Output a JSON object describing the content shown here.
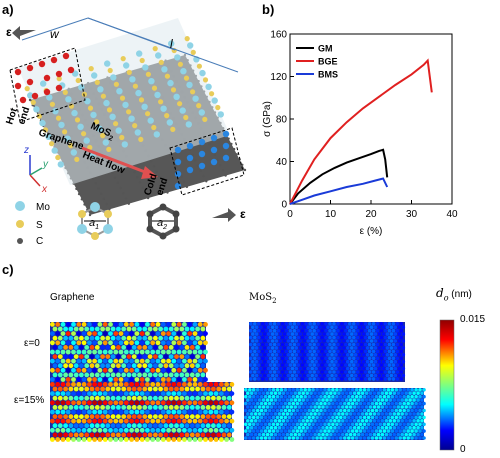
{
  "panel_a": {
    "label": "a)",
    "w_label": "w",
    "l_label": "l",
    "eps_left": "ε",
    "eps_right": "ε",
    "hot_end": [
      "Hot",
      "end"
    ],
    "cold_end": [
      "Cold",
      "end"
    ],
    "mos2_label": "MoS",
    "mos2_sub": "2",
    "graphene_label": "Graphene",
    "heat_flow": "Heat flow",
    "axes": {
      "z": "z",
      "y": "y",
      "x": "x"
    },
    "legend": [
      {
        "label": "Mo",
        "color": "#8fd3e6"
      },
      {
        "label": "S",
        "color": "#e8cc5a"
      },
      {
        "label": "C",
        "color": "#555555"
      }
    ],
    "a1_label": "a",
    "a1_sub": "1",
    "a2_label": "a",
    "a2_sub": "2",
    "colors": {
      "hot": "#d62020",
      "cold": "#2a86e0",
      "arrow": "#e05050"
    }
  },
  "panel_b": {
    "label": "b)",
    "chart_data": {
      "type": "line",
      "xlabel": "ε (%)",
      "ylabel": "σ (GPa)",
      "xlim": [
        0,
        40
      ],
      "ylim": [
        0,
        160
      ],
      "xticks": [
        0,
        10,
        20,
        30,
        40
      ],
      "yticks": [
        0,
        40,
        80,
        120,
        160
      ],
      "legend_position": "top-left",
      "series": [
        {
          "name": "GM",
          "color": "#000000",
          "x": [
            0,
            2,
            5,
            8,
            11,
            14,
            17,
            20,
            22,
            23,
            23.5,
            24
          ],
          "y": [
            0,
            10,
            20,
            28,
            34,
            39,
            43,
            47,
            50,
            51,
            42,
            25
          ]
        },
        {
          "name": "BGE",
          "color": "#e02020",
          "x": [
            0,
            3,
            6,
            10,
            14,
            18,
            22,
            26,
            30,
            33,
            34,
            35
          ],
          "y": [
            0,
            22,
            42,
            62,
            77,
            90,
            101,
            112,
            122,
            131,
            135,
            105
          ]
        },
        {
          "name": "BMS",
          "color": "#1a3bd8",
          "x": [
            0,
            3,
            6,
            10,
            14,
            18,
            21,
            23,
            24
          ],
          "y": [
            0,
            4,
            8,
            12,
            16,
            19,
            22,
            24,
            16
          ]
        }
      ]
    }
  },
  "panel_c": {
    "label": "c)",
    "graphene_title": "Graphene",
    "mos2_title": "MoS",
    "mos2_sub": "2",
    "row1": "ε=0",
    "row2": "ε=15%",
    "colorbar": {
      "title": "d",
      "title_sub": "o",
      "unit": "(nm)",
      "max_label": "0.015",
      "min_label": "0"
    }
  }
}
